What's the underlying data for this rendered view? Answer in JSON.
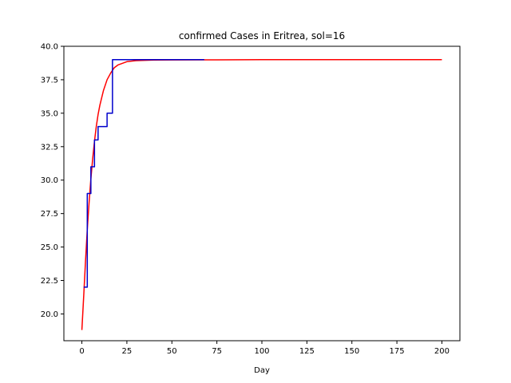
{
  "chart_data": {
    "type": "line",
    "title": "confirmed Cases in Eritrea, sol=16",
    "xlabel": "Day",
    "ylabel": "",
    "xlim": [
      -10,
      210
    ],
    "ylim": [
      18.0,
      40.0
    ],
    "xticks": [
      0,
      25,
      50,
      75,
      100,
      125,
      150,
      175,
      200
    ],
    "xtick_labels": [
      "0",
      "25",
      "50",
      "75",
      "100",
      "125",
      "150",
      "175",
      "200"
    ],
    "yticks": [
      20.0,
      22.5,
      25.0,
      27.5,
      30.0,
      32.5,
      35.0,
      37.5,
      40.0
    ],
    "ytick_labels": [
      "20.0",
      "22.5",
      "25.0",
      "27.5",
      "30.0",
      "32.5",
      "35.0",
      "37.5",
      "40.0"
    ],
    "grid": false,
    "series": [
      {
        "color": "#ff0000",
        "style": "smooth",
        "x": [
          0,
          1,
          2,
          3,
          4,
          5,
          6,
          7,
          8,
          9,
          10,
          12,
          14,
          16,
          18,
          20,
          25,
          30,
          40,
          50,
          75,
          100,
          150,
          200
        ],
        "values": [
          18.8,
          21.3,
          23.9,
          26.3,
          28.3,
          30.1,
          31.6,
          32.9,
          34.0,
          34.9,
          35.6,
          36.7,
          37.5,
          38.0,
          38.4,
          38.6,
          38.85,
          38.93,
          38.97,
          38.98,
          38.99,
          39.0,
          39.0,
          39.0
        ]
      },
      {
        "color": "#0000cc",
        "style": "step",
        "x": [
          1,
          2,
          3,
          4,
          5,
          6,
          7,
          8,
          9,
          10,
          11,
          12,
          13,
          14,
          15,
          16,
          17,
          68
        ],
        "values": [
          22,
          22,
          29,
          29,
          31,
          31,
          33,
          33,
          34,
          34,
          34,
          34,
          34,
          35,
          35,
          35,
          39,
          39
        ]
      }
    ]
  }
}
